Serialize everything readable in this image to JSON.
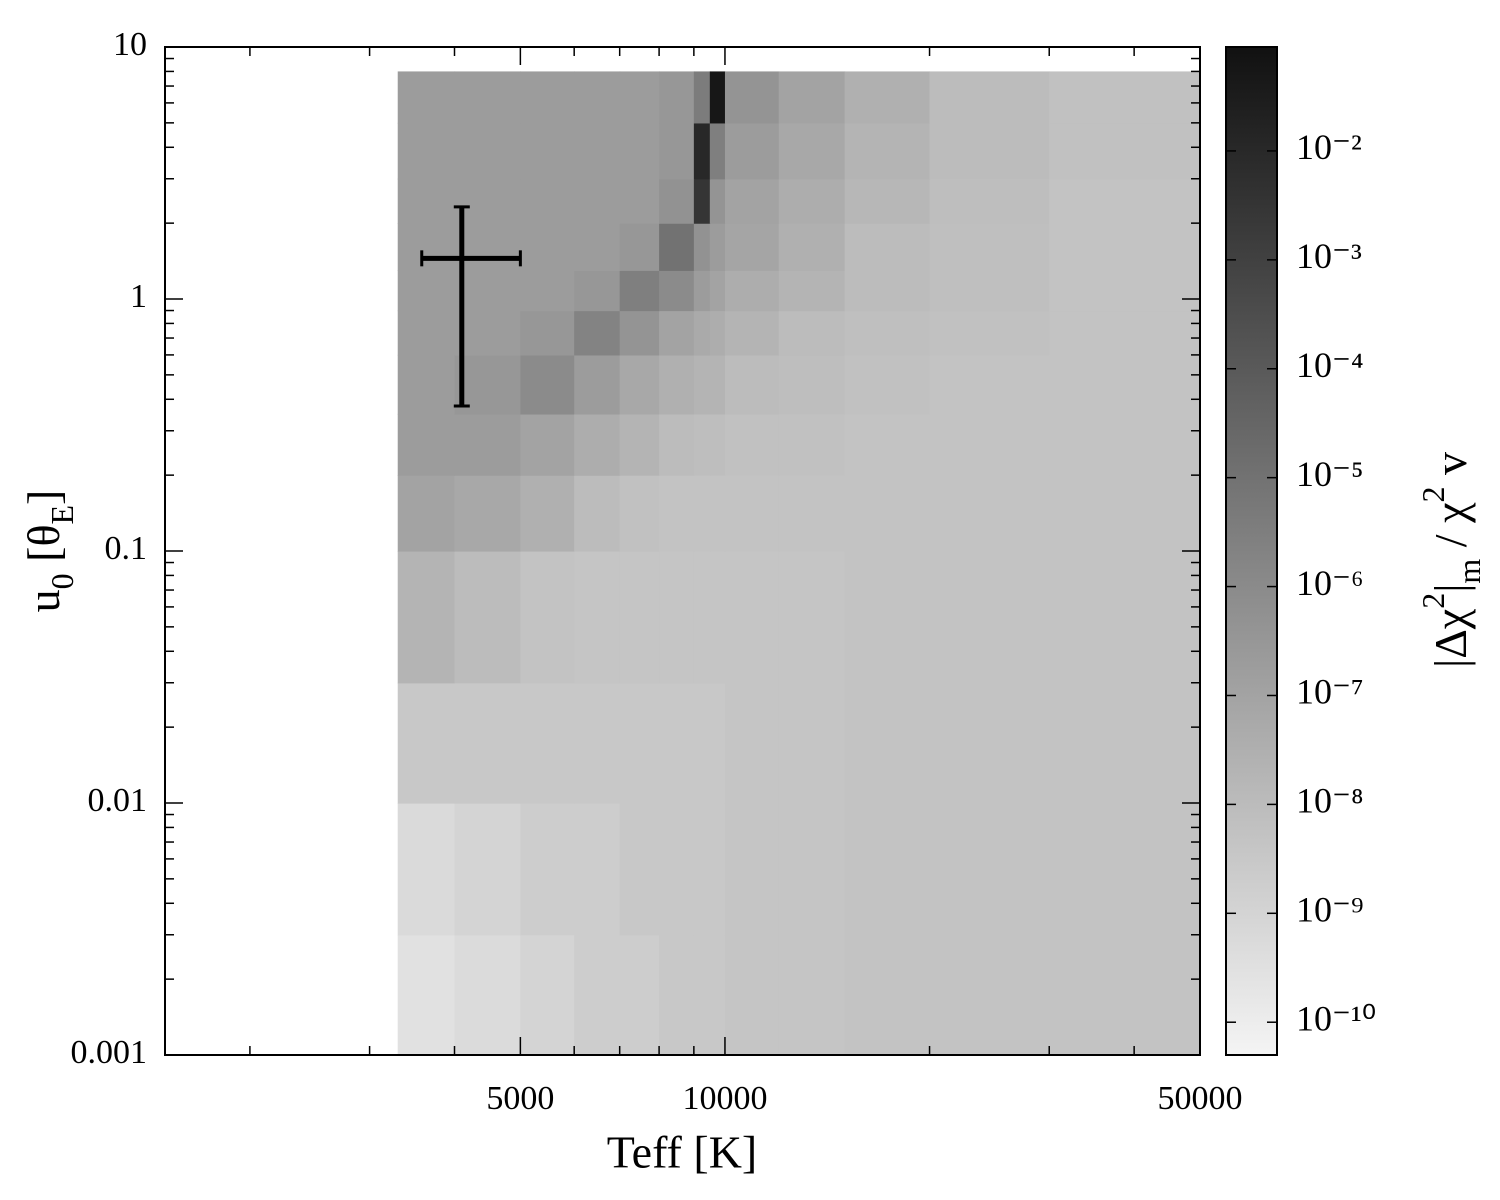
{
  "chart_data": {
    "type": "heatmap",
    "x_label": "Teff [K]",
    "y_label_parts": [
      "u",
      "0",
      " [θ",
      "E",
      "]"
    ],
    "colorbar_label_parts": [
      "|Δχ",
      "2",
      "|",
      "m",
      " / χ",
      "2",
      " v"
    ],
    "xscale": "log",
    "yscale": "log",
    "zscale": "log",
    "xlim": [
      1500,
      50000
    ],
    "ylim": [
      0.001,
      10
    ],
    "zlim": [
      5e-11,
      0.09
    ],
    "xticks": [
      5000,
      10000,
      50000
    ],
    "xminorticks": [
      2000,
      3000,
      4000,
      6000,
      7000,
      8000,
      9000,
      20000,
      30000,
      40000
    ],
    "yticks": [
      0.001,
      0.01,
      0.1,
      1,
      10
    ],
    "yminorticks": [
      0.002,
      0.003,
      0.004,
      0.005,
      0.006,
      0.007,
      0.008,
      0.009,
      0.02,
      0.03,
      0.04,
      0.05,
      0.06,
      0.07,
      0.08,
      0.09,
      0.2,
      0.3,
      0.4,
      0.5,
      0.6,
      0.7,
      0.8,
      0.9,
      2,
      3,
      4,
      5,
      6,
      7,
      8,
      9
    ],
    "zticks": [
      {
        "value": 1e-10,
        "label": "10⁻¹⁰"
      },
      {
        "value": 1e-09,
        "label": "10⁻⁹"
      },
      {
        "value": 1e-08,
        "label": "10⁻⁸"
      },
      {
        "value": 1e-07,
        "label": "10⁻⁷"
      },
      {
        "value": 1e-06,
        "label": "10⁻⁶"
      },
      {
        "value": 1e-05,
        "label": "10⁻⁵"
      },
      {
        "value": 0.0001,
        "label": "10⁻⁴"
      },
      {
        "value": 0.001,
        "label": "10⁻³"
      },
      {
        "value": 0.01,
        "label": "10⁻²"
      }
    ],
    "colormap": [
      "#f4f4f4",
      "#111111"
    ],
    "x_edges": [
      3300,
      4000,
      5000,
      6000,
      7000,
      8000,
      9000,
      9500,
      10000,
      12000,
      15000,
      20000,
      30000,
      50000
    ],
    "y_edges": [
      0.001,
      0.003,
      0.01,
      0.03,
      0.1,
      0.2,
      0.35,
      0.6,
      0.9,
      1.3,
      2,
      3,
      5,
      8
    ],
    "z": [
      [
        3e-10,
        5e-10,
        1e-09,
        2e-09,
        2e-09,
        3e-09,
        3e-09,
        3e-09,
        4e-09,
        4e-09,
        5e-09,
        5e-09,
        5e-09
      ],
      [
        6e-10,
        1e-09,
        2e-09,
        2e-09,
        3e-09,
        3e-09,
        3e-09,
        3e-09,
        4e-09,
        4e-09,
        5e-09,
        5e-09,
        5e-09
      ],
      [
        3e-09,
        3e-09,
        3e-09,
        3e-09,
        3e-09,
        3e-09,
        3e-09,
        3e-09,
        4e-09,
        4e-09,
        5e-09,
        5e-09,
        5e-09
      ],
      [
        2e-08,
        1e-08,
        5e-09,
        4e-09,
        4e-09,
        4e-09,
        4e-09,
        4e-09,
        4e-09,
        4e-09,
        5e-09,
        5e-09,
        5e-09
      ],
      [
        1e-07,
        6e-08,
        3e-08,
        1e-08,
        6e-09,
        5e-09,
        5e-09,
        5e-09,
        5e-09,
        5e-09,
        5e-09,
        5e-09,
        5e-09
      ],
      [
        2e-07,
        2e-07,
        1e-07,
        4e-08,
        2e-08,
        1e-08,
        8e-09,
        8e-09,
        6e-09,
        6e-09,
        5e-09,
        5e-09,
        5e-09
      ],
      [
        2e-07,
        3e-07,
        1e-06,
        2e-07,
        6e-08,
        3e-08,
        2e-08,
        2e-08,
        1e-08,
        8e-09,
        6e-09,
        5e-09,
        5e-09
      ],
      [
        2e-07,
        2e-07,
        3e-07,
        2e-06,
        4e-07,
        1e-07,
        5e-08,
        4e-08,
        2e-08,
        1e-08,
        7e-09,
        6e-09,
        5e-09
      ],
      [
        2e-07,
        2e-07,
        2e-07,
        3e-07,
        3e-06,
        1e-06,
        2e-07,
        1e-07,
        4e-08,
        2e-08,
        1e-08,
        7e-09,
        5e-09
      ],
      [
        2e-07,
        2e-07,
        2e-07,
        2e-07,
        3e-07,
        1e-05,
        5e-07,
        2e-07,
        8e-08,
        3e-08,
        1e-08,
        7e-09,
        5e-09
      ],
      [
        2e-07,
        2e-07,
        2e-07,
        2e-07,
        2e-07,
        5e-07,
        0.003,
        4e-07,
        1e-07,
        4e-08,
        1.5e-08,
        8e-09,
        5e-09
      ],
      [
        2e-07,
        2e-07,
        2e-07,
        2e-07,
        2e-07,
        3e-07,
        0.01,
        3e-06,
        2e-07,
        6e-08,
        2e-08,
        1e-08,
        6e-09
      ],
      [
        2e-07,
        2e-07,
        2e-07,
        2e-07,
        2e-07,
        3e-07,
        4e-06,
        0.05,
        4e-07,
        1e-07,
        3e-08,
        1e-08,
        6e-09
      ]
    ],
    "marker": {
      "x": 4100,
      "x_low": 3580,
      "x_high": 5000,
      "y": 1.45,
      "y_low": 0.376,
      "y_high": 2.32,
      "color": "#000000"
    }
  }
}
